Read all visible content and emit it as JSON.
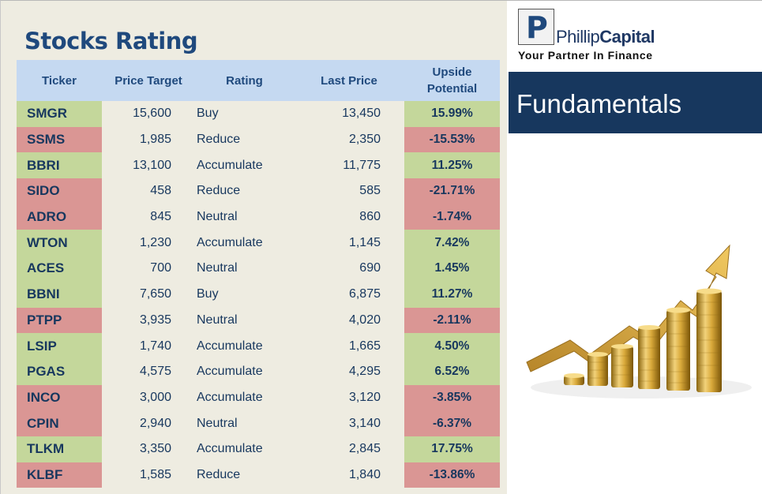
{
  "title": "Stocks Rating",
  "table": {
    "headers": {
      "ticker": "Ticker",
      "price_target": "Price Target",
      "rating": "Rating",
      "last_price": "Last Price",
      "upside_line1": "Upside",
      "upside_line2": "Potential"
    },
    "rows": [
      {
        "ticker": "SMGR",
        "price_target": "15,600",
        "rating": "Buy",
        "last_price": "13,450",
        "upside": "15.99%",
        "status": "positive"
      },
      {
        "ticker": "SSMS",
        "price_target": "1,985",
        "rating": "Reduce",
        "last_price": "2,350",
        "upside": "-15.53%",
        "status": "negative"
      },
      {
        "ticker": "BBRI",
        "price_target": "13,100",
        "rating": "Accumulate",
        "last_price": "11,775",
        "upside": "11.25%",
        "status": "positive"
      },
      {
        "ticker": "SIDO",
        "price_target": "458",
        "rating": "Reduce",
        "last_price": "585",
        "upside": "-21.71%",
        "status": "negative"
      },
      {
        "ticker": "ADRO",
        "price_target": "845",
        "rating": "Neutral",
        "last_price": "860",
        "upside": "-1.74%",
        "status": "negative"
      },
      {
        "ticker": "WTON",
        "price_target": "1,230",
        "rating": "Accumulate",
        "last_price": "1,145",
        "upside": "7.42%",
        "status": "positive"
      },
      {
        "ticker": "ACES",
        "price_target": "700",
        "rating": "Neutral",
        "last_price": "690",
        "upside": "1.45%",
        "status": "positive"
      },
      {
        "ticker": "BBNI",
        "price_target": "7,650",
        "rating": "Buy",
        "last_price": "6,875",
        "upside": "11.27%",
        "status": "positive"
      },
      {
        "ticker": "PTPP",
        "price_target": "3,935",
        "rating": "Neutral",
        "last_price": "4,020",
        "upside": "-2.11%",
        "status": "negative"
      },
      {
        "ticker": "LSIP",
        "price_target": "1,740",
        "rating": "Accumulate",
        "last_price": "1,665",
        "upside": "4.50%",
        "status": "positive"
      },
      {
        "ticker": "PGAS",
        "price_target": "4,575",
        "rating": "Accumulate",
        "last_price": "4,295",
        "upside": "6.52%",
        "status": "positive"
      },
      {
        "ticker": "INCO",
        "price_target": "3,000",
        "rating": "Accumulate",
        "last_price": "3,120",
        "upside": "-3.85%",
        "status": "negative"
      },
      {
        "ticker": "CPIN",
        "price_target": "2,940",
        "rating": "Neutral",
        "last_price": "3,140",
        "upside": "-6.37%",
        "status": "negative"
      },
      {
        "ticker": "TLKM",
        "price_target": "3,350",
        "rating": "Accumulate",
        "last_price": "2,845",
        "upside": "17.75%",
        "status": "positive"
      },
      {
        "ticker": "KLBF",
        "price_target": "1,585",
        "rating": "Reduce",
        "last_price": "1,840",
        "upside": "-13.86%",
        "status": "negative"
      }
    ]
  },
  "brand": {
    "logo_letter": "P",
    "name_part1": "Phillip",
    "name_part2": "Capital",
    "tagline": "Your Partner In Finance"
  },
  "banner": "Fundamentals",
  "colors": {
    "positive": "#c4d79b",
    "negative": "#da9694",
    "header": "#c5d9f1",
    "title": "#1f497d",
    "banner": "#17375e"
  },
  "illustration": "growth-arrow-coin-stacks"
}
